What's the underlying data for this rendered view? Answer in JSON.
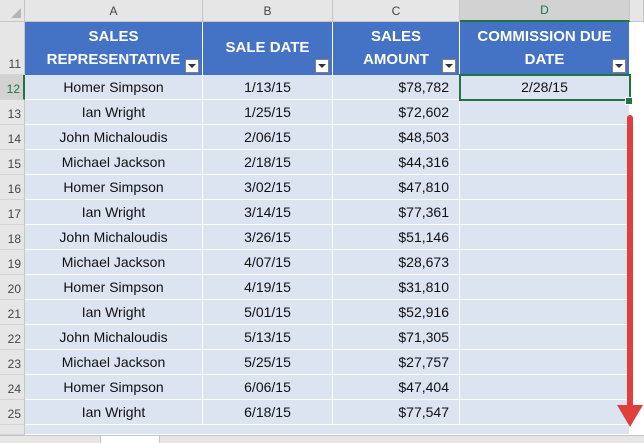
{
  "columns": [
    "A",
    "B",
    "C",
    "D"
  ],
  "active_column": "D",
  "header_row_number": "11",
  "headers": {
    "sales_rep": [
      "SALES",
      "REPRESENTATIVE"
    ],
    "sale_date": [
      "SALE DATE"
    ],
    "sales_amount": [
      "SALES",
      "AMOUNT"
    ],
    "commission_due": [
      "COMMISSION DUE",
      "DATE"
    ]
  },
  "rows": [
    {
      "row": "12",
      "rep": "Homer Simpson",
      "date": "1/13/15",
      "amount": "$78,782",
      "due": "2/28/15"
    },
    {
      "row": "13",
      "rep": "Ian Wright",
      "date": "1/25/15",
      "amount": "$72,602",
      "due": ""
    },
    {
      "row": "14",
      "rep": "John Michaloudis",
      "date": "2/06/15",
      "amount": "$48,503",
      "due": ""
    },
    {
      "row": "15",
      "rep": "Michael Jackson",
      "date": "2/18/15",
      "amount": "$44,316",
      "due": ""
    },
    {
      "row": "16",
      "rep": "Homer Simpson",
      "date": "3/02/15",
      "amount": "$47,810",
      "due": ""
    },
    {
      "row": "17",
      "rep": "Ian Wright",
      "date": "3/14/15",
      "amount": "$77,361",
      "due": ""
    },
    {
      "row": "18",
      "rep": "John Michaloudis",
      "date": "3/26/15",
      "amount": "$51,146",
      "due": ""
    },
    {
      "row": "19",
      "rep": "Michael Jackson",
      "date": "4/07/15",
      "amount": "$28,673",
      "due": ""
    },
    {
      "row": "20",
      "rep": "Homer Simpson",
      "date": "4/19/15",
      "amount": "$31,810",
      "due": ""
    },
    {
      "row": "21",
      "rep": "Ian Wright",
      "date": "5/01/15",
      "amount": "$52,916",
      "due": ""
    },
    {
      "row": "22",
      "rep": "John Michaloudis",
      "date": "5/13/15",
      "amount": "$71,305",
      "due": ""
    },
    {
      "row": "23",
      "rep": "Michael Jackson",
      "date": "5/25/15",
      "amount": "$27,757",
      "due": ""
    },
    {
      "row": "24",
      "rep": "Homer Simpson",
      "date": "6/06/15",
      "amount": "$47,404",
      "due": ""
    },
    {
      "row": "25",
      "rep": "Ian Wright",
      "date": "6/18/15",
      "amount": "$77,547",
      "due": ""
    }
  ],
  "selected_cell": "D12",
  "colors": {
    "header_fill": "#4472c4",
    "band_fill": "#dbe4f0",
    "selection": "#217346",
    "arrow": "#e0403b"
  }
}
